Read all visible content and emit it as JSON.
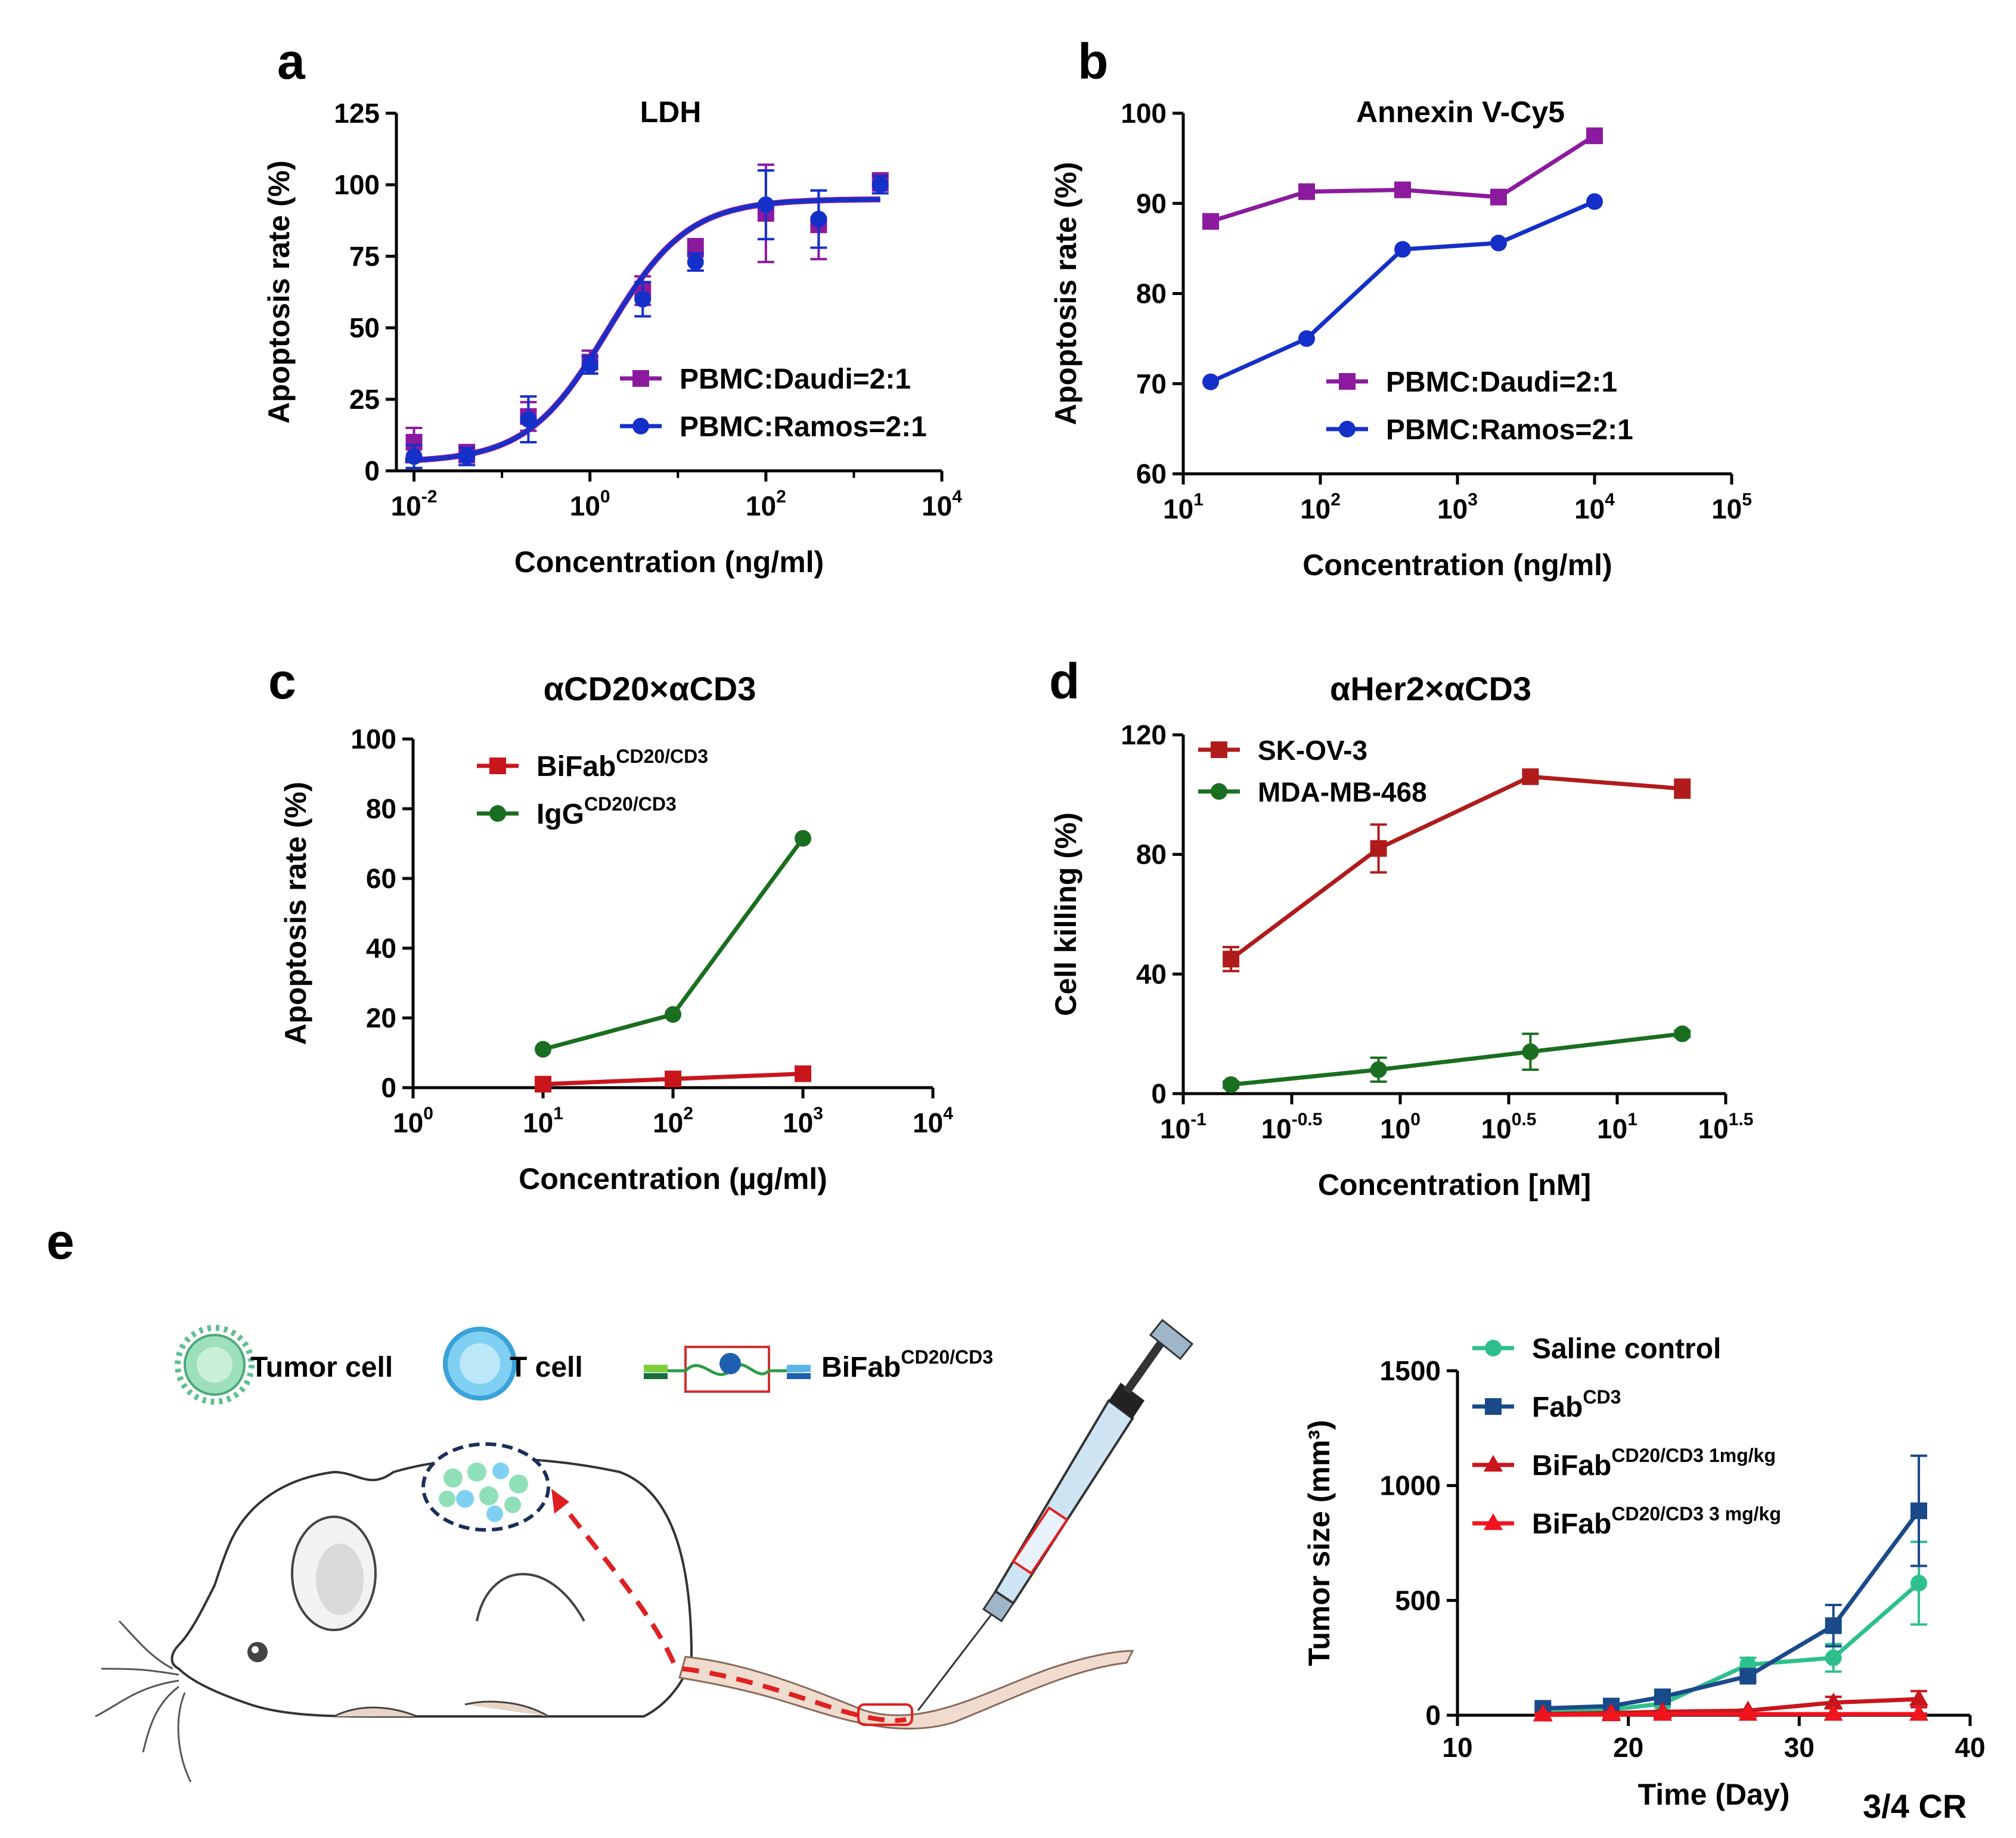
{
  "panels": {
    "a": "a",
    "b": "b",
    "c": "c",
    "d": "d",
    "e": "e"
  },
  "illustration": {
    "tumor_cell_label": "Tumor cell",
    "t_cell_label": "T cell",
    "bifab_label": "BiFab",
    "bifab_sup": "CD20/CD3"
  },
  "cr_label": "3/4 CR",
  "chart_data": [
    {
      "id": "a",
      "type": "scatter",
      "title": "LDH",
      "xlabel": "Concentration (ng/ml)",
      "ylabel": "Apoptosis rate (%)",
      "xscale": "log10",
      "xlim_log": [
        -2.2,
        4
      ],
      "ylim": [
        0,
        125
      ],
      "yticks": [
        0,
        25,
        50,
        75,
        100,
        125
      ],
      "xticks": [
        {
          "base": "10",
          "exp": "-2"
        },
        {
          "base": "10",
          "exp": "0"
        },
        {
          "base": "10",
          "exp": "2"
        },
        {
          "base": "10",
          "exp": "4"
        }
      ],
      "legend_position": "bottom-right",
      "series": [
        {
          "name": "PBMC:Daudi=2:1",
          "color": "#8b1a9e",
          "marker": "square",
          "x_log": [
            -2,
            -1.4,
            -0.7,
            0,
            0.6,
            1.2,
            2,
            2.6,
            3.3
          ],
          "y": [
            10,
            6,
            19,
            38,
            63,
            78,
            90,
            86,
            101
          ],
          "err": [
            5,
            3,
            5,
            4,
            5,
            3,
            17,
            12,
            3
          ]
        },
        {
          "name": "PBMC:Ramos=2:1",
          "color": "#1530c8",
          "marker": "circle",
          "x_log": [
            -2,
            -1.4,
            -0.7,
            0,
            0.6,
            1.2,
            2,
            2.6,
            3.3
          ],
          "y": [
            5,
            5,
            18,
            37,
            60,
            73,
            93,
            88,
            100
          ],
          "err": [
            4,
            3,
            8,
            3,
            6,
            3,
            12,
            10,
            3
          ]
        }
      ]
    },
    {
      "id": "b",
      "type": "line",
      "title": "Annexin V-Cy5",
      "xlabel": "Concentration (ng/ml)",
      "ylabel": "Apoptosis rate (%)",
      "xscale": "log10",
      "xlim_log": [
        1,
        5
      ],
      "ylim": [
        60,
        100
      ],
      "yticks": [
        60,
        70,
        80,
        90,
        100
      ],
      "xticks": [
        {
          "base": "10",
          "exp": "1"
        },
        {
          "base": "10",
          "exp": "2"
        },
        {
          "base": "10",
          "exp": "3"
        },
        {
          "base": "10",
          "exp": "4"
        },
        {
          "base": "10",
          "exp": "5"
        }
      ],
      "legend_position": "bottom-right",
      "series": [
        {
          "name": "PBMC:Daudi=2:1",
          "color": "#8b1a9e",
          "marker": "square",
          "x_log": [
            1.2,
            1.9,
            2.6,
            3.3,
            4
          ],
          "y": [
            88,
            91.3,
            91.5,
            90.7,
            97.5
          ]
        },
        {
          "name": "PBMC:Ramos=2:1",
          "color": "#1530c8",
          "marker": "circle",
          "x_log": [
            1.2,
            1.9,
            2.6,
            3.3,
            4
          ],
          "y": [
            70.2,
            75,
            84.9,
            85.6,
            90.2
          ]
        }
      ]
    },
    {
      "id": "c",
      "type": "line",
      "title": "αCD20×αCD3",
      "xlabel": "Concentration (µg/ml)",
      "ylabel": "Apoptosis rate (%)",
      "xscale": "log10",
      "xlim_log": [
        0,
        4
      ],
      "ylim": [
        0,
        100
      ],
      "yticks": [
        0,
        20,
        40,
        60,
        80,
        100
      ],
      "xticks": [
        {
          "base": "10",
          "exp": "0"
        },
        {
          "base": "10",
          "exp": "1"
        },
        {
          "base": "10",
          "exp": "2"
        },
        {
          "base": "10",
          "exp": "3"
        },
        {
          "base": "10",
          "exp": "4"
        }
      ],
      "legend_position": "top-left",
      "series": [
        {
          "name": "BiFab",
          "sup": "CD20/CD3",
          "color": "#c8161d",
          "marker": "square",
          "x_log": [
            1,
            2,
            3
          ],
          "y": [
            1,
            2.5,
            4
          ]
        },
        {
          "name": "IgG",
          "sup": "CD20/CD3",
          "color": "#1a6e1f",
          "marker": "circle",
          "x_log": [
            1,
            2,
            3
          ],
          "y": [
            11,
            21,
            71.5
          ]
        }
      ]
    },
    {
      "id": "d",
      "type": "line",
      "title": "αHer2×αCD3",
      "xlabel": "Concentration [nM]",
      "ylabel": "Cell killing (%)",
      "xscale": "log10",
      "xlim_log": [
        -1,
        1.5
      ],
      "ylim": [
        0,
        120
      ],
      "yticks": [
        0,
        40,
        80,
        120
      ],
      "xticks": [
        {
          "base": "10",
          "exp": "-1"
        },
        {
          "base": "10",
          "exp": "-0.5"
        },
        {
          "base": "10",
          "exp": "0"
        },
        {
          "base": "10",
          "exp": "0.5"
        },
        {
          "base": "10",
          "exp": "1"
        },
        {
          "base": "10",
          "exp": "1.5"
        }
      ],
      "legend_position": "top-left",
      "series": [
        {
          "name": "SK-OV-3",
          "color": "#b01c1c",
          "marker": "square",
          "x_log": [
            -0.78,
            -0.1,
            0.6,
            1.3
          ],
          "y": [
            45,
            82,
            106,
            102
          ],
          "err": [
            4,
            8,
            1,
            3
          ]
        },
        {
          "name": "MDA-MB-468",
          "color": "#1a6e1f",
          "marker": "circle",
          "x_log": [
            -0.78,
            -0.1,
            0.6,
            1.3
          ],
          "y": [
            3,
            8,
            14,
            20
          ],
          "err": [
            1,
            4,
            6,
            1
          ]
        }
      ]
    },
    {
      "id": "e",
      "type": "line",
      "title": "",
      "xlabel": "Time (Day)",
      "ylabel": "Tumor size (mm³)",
      "xlim": [
        10,
        40
      ],
      "xticks_lin": [
        10,
        20,
        30,
        40
      ],
      "ylim": [
        0,
        1500
      ],
      "yticks": [
        0,
        500,
        1000,
        1500
      ],
      "legend_position": "top",
      "series": [
        {
          "name": "Saline control",
          "color": "#2ec08c",
          "marker": "circle",
          "x": [
            15,
            19,
            22,
            27,
            32,
            37
          ],
          "y": [
            20,
            25,
            50,
            220,
            250,
            575
          ],
          "err": [
            10,
            10,
            15,
            30,
            60,
            180
          ]
        },
        {
          "name": "Fab",
          "sup": "CD3",
          "color": "#1a4a8a",
          "marker": "square",
          "x": [
            15,
            19,
            22,
            27,
            32,
            37
          ],
          "y": [
            30,
            40,
            80,
            170,
            390,
            890
          ],
          "err": [
            10,
            10,
            15,
            20,
            90,
            240
          ]
        },
        {
          "name": "BiFab",
          "sup": "CD20/CD3 1mg/kg",
          "color": "#c8161d",
          "marker": "triangle",
          "x": [
            15,
            19,
            22,
            27,
            32,
            37
          ],
          "y": [
            5,
            10,
            15,
            20,
            55,
            70
          ],
          "err": [
            5,
            5,
            5,
            5,
            25,
            35
          ]
        },
        {
          "name": "BiFab",
          "sup": "CD20/CD3 3 mg/kg",
          "color": "#f0141e",
          "marker": "triangle",
          "x": [
            15,
            19,
            22,
            27,
            32,
            37
          ],
          "y": [
            2,
            3,
            5,
            5,
            5,
            5
          ],
          "err": [
            1,
            1,
            1,
            1,
            2,
            2
          ]
        }
      ]
    }
  ]
}
